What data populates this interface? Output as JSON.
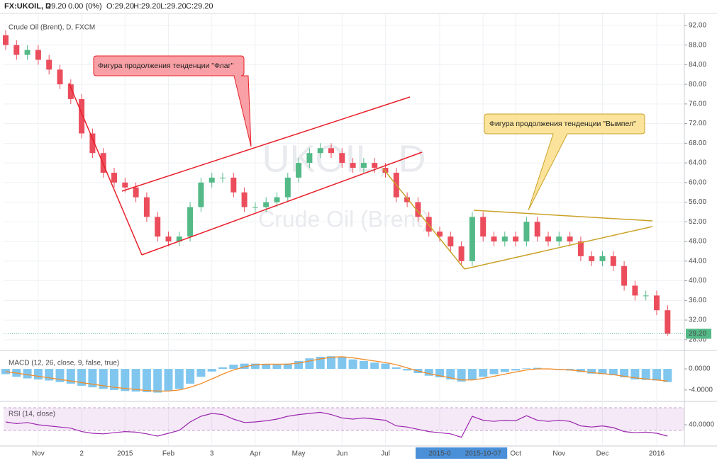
{
  "header": {
    "symbol": "FX:UKOIL, D",
    "last": "29.20",
    "change": "0.00 (0%)",
    "open": "O:29.20",
    "high": "H:29.20",
    "low": "L:29.20",
    "close": "C:29.20"
  },
  "chart_data": {
    "type": "candlestick",
    "title": "Crude Oil (Brent), D, FXCM",
    "watermark": [
      "UKOIL, D",
      "Crude Oil (Brent)"
    ],
    "annotations": [
      "Фигура продолжения тенденции \"Флаг\"",
      "Фигура продолжения тенденции \"Вымпел\""
    ],
    "open": [
      90,
      88,
      86,
      87,
      85,
      83,
      80,
      77,
      70,
      66,
      62,
      60,
      59,
      57,
      53,
      49,
      48,
      49,
      55,
      60,
      61,
      61,
      58,
      55,
      55,
      56,
      57,
      61,
      64,
      66,
      67,
      66,
      64,
      63,
      64,
      63,
      62,
      57,
      56,
      53,
      50,
      49,
      47,
      44,
      53,
      49,
      48,
      49,
      48,
      52,
      49,
      48,
      49,
      48,
      45,
      44,
      45,
      43,
      39,
      37,
      37,
      34
    ],
    "high": [
      91,
      89,
      88,
      88,
      86,
      84,
      81,
      78,
      71,
      67,
      63,
      61,
      60,
      58,
      54,
      50,
      50,
      56,
      61,
      62,
      62,
      62,
      59,
      56,
      57,
      58,
      62,
      65,
      67,
      68,
      68,
      67,
      65,
      65,
      65,
      64,
      63,
      58,
      57,
      54,
      51,
      50,
      48,
      54,
      54,
      50,
      50,
      50,
      53,
      53,
      50,
      50,
      50,
      49,
      46,
      46,
      46,
      44,
      40,
      38,
      38,
      35
    ],
    "low": [
      87,
      85,
      85,
      84,
      82,
      79,
      76,
      69,
      65,
      61,
      59,
      58,
      56,
      52,
      48,
      47,
      47,
      48,
      54,
      59,
      60,
      57,
      54,
      54,
      54,
      55,
      56,
      60,
      63,
      65,
      65,
      63,
      62,
      62,
      62,
      61,
      56,
      55,
      52,
      49,
      48,
      46,
      43,
      43,
      48,
      47,
      47,
      47,
      47,
      48,
      47,
      47,
      47,
      44,
      43,
      43,
      42,
      38,
      36,
      36,
      33,
      28.8
    ],
    "close": [
      88,
      86,
      87,
      85,
      83,
      80,
      77,
      70,
      66,
      62,
      60,
      59,
      57,
      53,
      49,
      48,
      49,
      55,
      60,
      61,
      61,
      58,
      55,
      55,
      56,
      57,
      61,
      64,
      66,
      67,
      66,
      64,
      63,
      64,
      63,
      62,
      57,
      56,
      53,
      50,
      49,
      47,
      44,
      53,
      49,
      48,
      49,
      48,
      52,
      49,
      48,
      49,
      48,
      45,
      44,
      45,
      43,
      39,
      37,
      37,
      34,
      29.2
    ],
    "up_color": "#53b987",
    "down_color": "#eb4d5c",
    "ylim": [
      26.1,
      94
    ],
    "yticks": [
      {
        "value": 92,
        "label": "92.00"
      },
      {
        "value": 88,
        "label": "88.00"
      },
      {
        "value": 84,
        "label": "84.00"
      },
      {
        "value": 80,
        "label": "80.00"
      },
      {
        "value": 76,
        "label": "76.00"
      },
      {
        "value": 72,
        "label": "72.00"
      },
      {
        "value": 68,
        "label": "68.00"
      },
      {
        "value": 64,
        "label": "64.00"
      },
      {
        "value": 60,
        "label": "60.00"
      },
      {
        "value": 56,
        "label": "56.00"
      },
      {
        "value": 52,
        "label": "52.00"
      },
      {
        "value": 48,
        "label": "48.00"
      },
      {
        "value": 44,
        "label": "44.00"
      },
      {
        "value": 40,
        "label": "40.00"
      },
      {
        "value": 36,
        "label": "36.00"
      },
      {
        "value": 32,
        "label": "32.00"
      },
      {
        "value": 28,
        "label": "28.00"
      }
    ],
    "last_price": {
      "value": 29.2,
      "label": "29.20"
    },
    "grid": true,
    "xticks": [
      {
        "value": 3,
        "label": "Nov"
      },
      {
        "value": 7,
        "label": "2"
      },
      {
        "value": 11,
        "label": "2015"
      },
      {
        "value": 15,
        "label": "Feb"
      },
      {
        "value": 19,
        "label": "3"
      },
      {
        "value": 23,
        "label": "Apr"
      },
      {
        "value": 27,
        "label": "May"
      },
      {
        "value": 31,
        "label": "Jun"
      },
      {
        "value": 35,
        "label": "Jul"
      },
      {
        "value": 40,
        "label": "2015-0"
      },
      {
        "value": 44,
        "label": "2015-10-07"
      },
      {
        "value": 47,
        "label": "Oct"
      },
      {
        "value": 51,
        "label": "Nov"
      },
      {
        "value": 55,
        "label": "Dec"
      },
      {
        "value": 60,
        "label": "2016"
      }
    ],
    "highlighted_xticks": [
      9,
      10
    ],
    "indicators": [
      {
        "type": "macd",
        "title": "MACD (12, 26, close, 9, false, true)",
        "color": "#56b3e8",
        "signal_color": "#f28c28",
        "histogram": [
          -1,
          -1.5,
          -1.8,
          -2,
          -2.2,
          -2.5,
          -2.8,
          -3.2,
          -3.5,
          -3.8,
          -4,
          -4.2,
          -4.3,
          -4.4,
          -4.5,
          -4.2,
          -3.8,
          -2.8,
          -1.5,
          -0.5,
          0.3,
          0.8,
          1,
          1,
          0.9,
          0.8,
          1,
          1.5,
          2,
          2.3,
          2.4,
          2.2,
          1.8,
          1.5,
          1.2,
          1,
          0.3,
          -0.3,
          -0.8,
          -1.3,
          -1.6,
          -2,
          -2.4,
          -2,
          -1.5,
          -1,
          -0.6,
          -0.3,
          0.1,
          0.2,
          0,
          -0.2,
          -0.3,
          -0.6,
          -0.9,
          -1,
          -1.2,
          -1.6,
          -2,
          -2.1,
          -2.2,
          -2.5
        ],
        "signal": [
          -0.5,
          -0.8,
          -1.1,
          -1.4,
          -1.7,
          -2,
          -2.3,
          -2.6,
          -2.9,
          -3.2,
          -3.5,
          -3.7,
          -3.9,
          -4.1,
          -4.2,
          -4.2,
          -4,
          -3.5,
          -2.8,
          -1.9,
          -1,
          -0.2,
          0.4,
          0.8,
          0.9,
          0.9,
          0.9,
          1.1,
          1.5,
          1.9,
          2.2,
          2.3,
          2.1,
          1.8,
          1.5,
          1.2,
          0.8,
          0.2,
          -0.4,
          -0.9,
          -1.3,
          -1.7,
          -2.1,
          -2.1,
          -1.8,
          -1.4,
          -1,
          -0.6,
          -0.2,
          0,
          0,
          -0.1,
          -0.2,
          -0.4,
          -0.7,
          -0.9,
          -1.1,
          -1.4,
          -1.7,
          -1.9,
          -2.1,
          -2.3
        ],
        "ylim": [
          -5.9,
          3.1
        ],
        "yticks": [
          {
            "value": 0,
            "label": "0.0000"
          },
          {
            "value": -4,
            "label": "-4.0000"
          }
        ]
      },
      {
        "type": "rsi",
        "title": "RSI (14, close)",
        "color": "#9c27b0",
        "values": [
          45,
          42,
          44,
          40,
          38,
          36,
          34,
          28,
          25,
          24,
          26,
          28,
          27,
          24,
          20,
          25,
          30,
          45,
          55,
          60,
          58,
          50,
          44,
          45,
          47,
          50,
          55,
          58,
          60,
          62,
          58,
          52,
          50,
          52,
          50,
          48,
          38,
          36,
          32,
          28,
          26,
          24,
          18,
          55,
          48,
          46,
          48,
          47,
          56,
          48,
          46,
          48,
          46,
          38,
          36,
          38,
          35,
          28,
          26,
          27,
          25,
          20
        ],
        "band": [
          30,
          70
        ],
        "ylim": [
          5,
          77.5
        ],
        "yticks": [
          {
            "value": 40,
            "label": "40.0000"
          }
        ]
      }
    ]
  }
}
